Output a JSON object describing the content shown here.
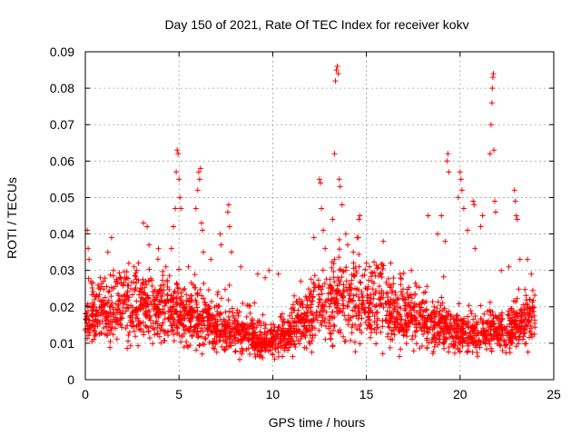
{
  "chart_data": {
    "type": "scatter",
    "title": "Day 150 of 2021, Rate Of TEC Index for receiver kokv",
    "xlabel": "GPS time / hours",
    "ylabel": "ROTI / TECUs",
    "xlim": [
      0,
      25
    ],
    "ylim": [
      0,
      0.09
    ],
    "x_ticks": [
      0,
      5,
      10,
      15,
      20,
      25
    ],
    "y_ticks": [
      0,
      0.01,
      0.02,
      0.03,
      0.04,
      0.05,
      0.06,
      0.07,
      0.08,
      0.09
    ],
    "x_tick_labels": [
      "0",
      "5",
      "10",
      "15",
      "20",
      "25"
    ],
    "y_tick_labels": [
      "0",
      "0.01",
      "0.02",
      "0.03",
      "0.04",
      "0.05",
      "0.06",
      "0.07",
      "0.08",
      "0.09"
    ],
    "grid": true,
    "marker": "+",
    "color": "#ff0000",
    "series": [
      {
        "name": "ROTI",
        "points": [
          [
            0.1,
            0.041
          ],
          [
            0.15,
            0.036
          ],
          [
            0.2,
            0.033
          ],
          [
            0.3,
            0.027
          ],
          [
            0.5,
            0.022
          ],
          [
            0.8,
            0.028
          ],
          [
            1.2,
            0.035
          ],
          [
            1.4,
            0.039
          ],
          [
            1.5,
            0.03
          ],
          [
            2.2,
            0.028
          ],
          [
            2.6,
            0.031
          ],
          [
            3.1,
            0.043
          ],
          [
            3.3,
            0.042
          ],
          [
            3.4,
            0.037
          ],
          [
            3.9,
            0.036
          ],
          [
            4.3,
            0.031
          ],
          [
            4.6,
            0.036
          ],
          [
            4.7,
            0.042
          ],
          [
            4.8,
            0.047
          ],
          [
            4.85,
            0.057
          ],
          [
            4.9,
            0.063
          ],
          [
            4.95,
            0.062
          ],
          [
            5.0,
            0.055
          ],
          [
            5.05,
            0.05
          ],
          [
            5.1,
            0.047
          ],
          [
            5.5,
            0.031
          ],
          [
            5.9,
            0.047
          ],
          [
            6.0,
            0.052
          ],
          [
            6.05,
            0.057
          ],
          [
            6.1,
            0.055
          ],
          [
            6.15,
            0.058
          ],
          [
            6.2,
            0.043
          ],
          [
            6.25,
            0.041
          ],
          [
            6.3,
            0.035
          ],
          [
            6.7,
            0.033
          ],
          [
            7.2,
            0.04
          ],
          [
            7.25,
            0.037
          ],
          [
            7.6,
            0.046
          ],
          [
            7.65,
            0.048
          ],
          [
            7.7,
            0.042
          ],
          [
            7.8,
            0.035
          ],
          [
            8.3,
            0.031
          ],
          [
            9.2,
            0.029
          ],
          [
            9.6,
            0.028
          ],
          [
            9.8,
            0.03
          ],
          [
            10.3,
            0.029
          ],
          [
            11.5,
            0.027
          ],
          [
            12.2,
            0.039
          ],
          [
            12.5,
            0.055
          ],
          [
            12.55,
            0.054
          ],
          [
            12.6,
            0.047
          ],
          [
            12.7,
            0.041
          ],
          [
            12.8,
            0.036
          ],
          [
            13.2,
            0.044
          ],
          [
            13.3,
            0.062
          ],
          [
            13.35,
            0.082
          ],
          [
            13.4,
            0.085
          ],
          [
            13.45,
            0.086
          ],
          [
            13.5,
            0.084
          ],
          [
            13.55,
            0.055
          ],
          [
            13.6,
            0.053
          ],
          [
            13.7,
            0.048
          ],
          [
            13.9,
            0.04
          ],
          [
            14.0,
            0.037
          ],
          [
            14.3,
            0.035
          ],
          [
            14.5,
            0.039
          ],
          [
            14.6,
            0.044
          ],
          [
            14.65,
            0.045
          ],
          [
            15.0,
            0.032
          ],
          [
            15.9,
            0.038
          ],
          [
            16.3,
            0.032
          ],
          [
            16.8,
            0.029
          ],
          [
            17.4,
            0.03
          ],
          [
            18.3,
            0.045
          ],
          [
            18.8,
            0.04
          ],
          [
            19.0,
            0.045
          ],
          [
            19.2,
            0.038
          ],
          [
            19.3,
            0.06
          ],
          [
            19.35,
            0.062
          ],
          [
            19.4,
            0.057
          ],
          [
            19.9,
            0.05
          ],
          [
            20.0,
            0.057
          ],
          [
            20.05,
            0.055
          ],
          [
            20.1,
            0.052
          ],
          [
            20.2,
            0.047
          ],
          [
            20.4,
            0.041
          ],
          [
            20.7,
            0.049
          ],
          [
            20.75,
            0.048
          ],
          [
            20.8,
            0.036
          ],
          [
            21.1,
            0.042
          ],
          [
            21.2,
            0.045
          ],
          [
            21.6,
            0.062
          ],
          [
            21.65,
            0.07
          ],
          [
            21.7,
            0.076
          ],
          [
            21.72,
            0.08
          ],
          [
            21.75,
            0.083
          ],
          [
            21.78,
            0.084
          ],
          [
            21.8,
            0.063
          ],
          [
            21.85,
            0.049
          ],
          [
            21.9,
            0.046
          ],
          [
            22.2,
            0.03
          ],
          [
            22.6,
            0.031
          ],
          [
            22.9,
            0.052
          ],
          [
            22.95,
            0.049
          ],
          [
            23.0,
            0.045
          ],
          [
            23.05,
            0.044
          ],
          [
            23.2,
            0.033
          ],
          [
            23.6,
            0.033
          ],
          [
            23.8,
            0.029
          ]
        ],
        "bulk_band": {
          "description": "dense cloud of points across full day",
          "x_range": [
            0,
            24
          ],
          "typical_range": [
            0.005,
            0.028
          ]
        }
      }
    ]
  }
}
